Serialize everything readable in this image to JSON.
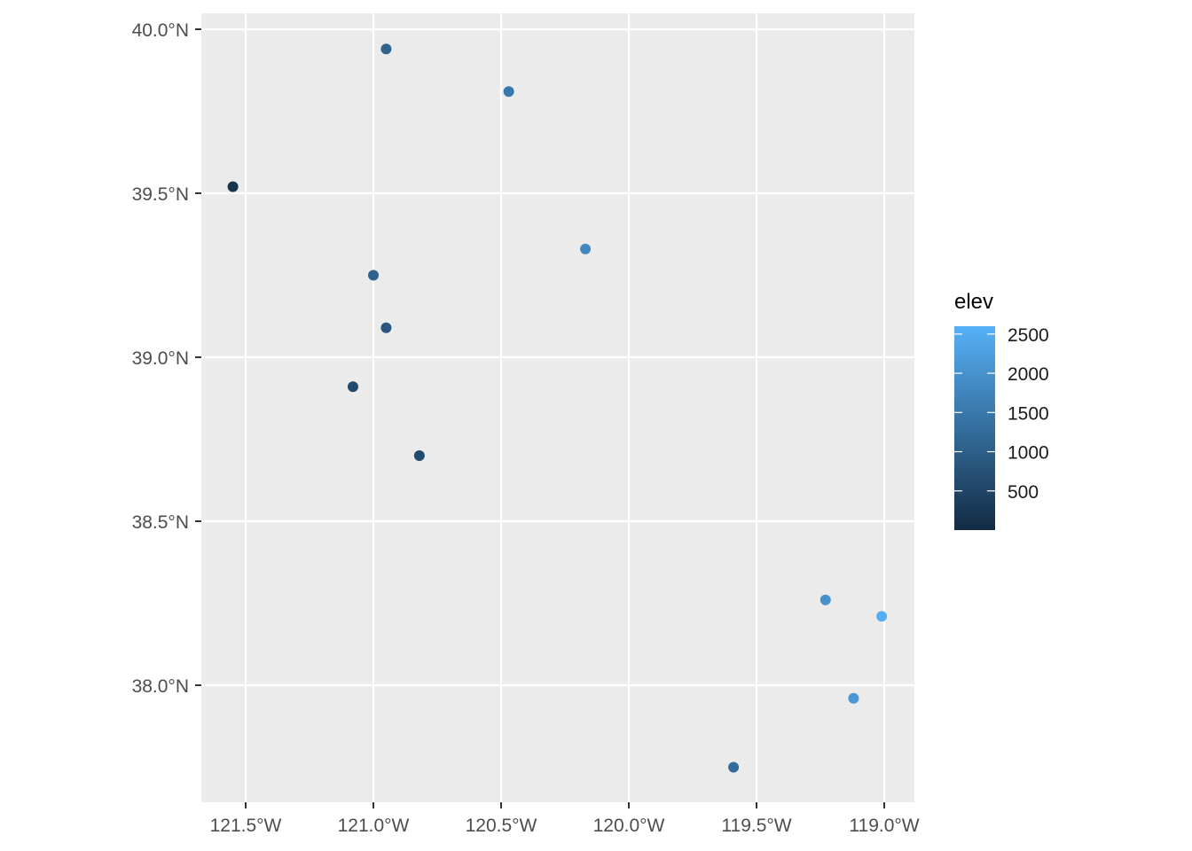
{
  "chart_data": {
    "type": "scatter",
    "title": "",
    "xlabel": "",
    "ylabel": "",
    "xlim": [
      -121.67,
      -118.88
    ],
    "ylim": [
      37.65,
      40.05
    ],
    "grid": true,
    "x_ticks": [
      -121.5,
      -121.0,
      -120.5,
      -120.0,
      -119.5,
      -119.0
    ],
    "x_tick_labels": [
      "121.5°W",
      "121.0°W",
      "120.5°W",
      "120.0°W",
      "119.5°W",
      "119.0°W"
    ],
    "y_ticks": [
      38.0,
      38.5,
      39.0,
      39.5,
      40.0
    ],
    "y_tick_labels": [
      "38.0°N",
      "38.5°N",
      "39.0°N",
      "39.5°N",
      "40.0°N"
    ],
    "color_variable": "elev",
    "legend": {
      "title": "elev",
      "position": "right",
      "type": "colorbar",
      "range": [
        0,
        2600
      ],
      "breaks": [
        500,
        1000,
        1500,
        2000,
        2500
      ],
      "labels": [
        "500",
        "1000",
        "1500",
        "2000",
        "2500"
      ],
      "low_color": "#132B43",
      "high_color": "#56B1F7"
    },
    "points": [
      {
        "lon": -120.95,
        "lat": 39.94,
        "elev": 1100
      },
      {
        "lon": -120.47,
        "lat": 39.81,
        "elev": 1500
      },
      {
        "lon": -121.55,
        "lat": 39.52,
        "elev": 150
      },
      {
        "lon": -120.17,
        "lat": 39.33,
        "elev": 1800
      },
      {
        "lon": -121.0,
        "lat": 39.25,
        "elev": 1050
      },
      {
        "lon": -120.95,
        "lat": 39.09,
        "elev": 850
      },
      {
        "lon": -121.08,
        "lat": 38.91,
        "elev": 600
      },
      {
        "lon": -120.82,
        "lat": 38.7,
        "elev": 600
      },
      {
        "lon": -119.23,
        "lat": 38.26,
        "elev": 2000
      },
      {
        "lon": -119.01,
        "lat": 38.21,
        "elev": 2550
      },
      {
        "lon": -119.12,
        "lat": 37.96,
        "elev": 2100
      },
      {
        "lon": -119.59,
        "lat": 37.75,
        "elev": 1250
      }
    ]
  },
  "colors": {
    "panel_background": "#EBEBEB",
    "grid": "#FFFFFF",
    "tick": "#333333",
    "tick_label": "#4D4D4D"
  }
}
